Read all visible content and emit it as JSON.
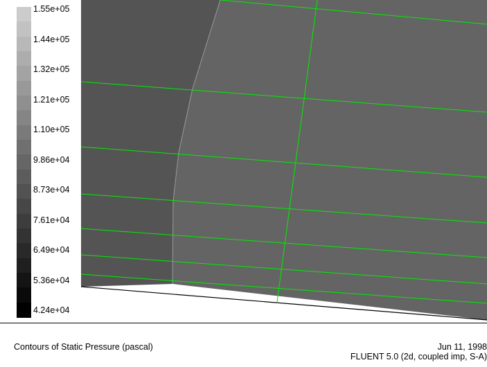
{
  "legend": {
    "labels": [
      "1.55e+05",
      "1.44e+05",
      "1.32e+05",
      "1.21e+05",
      "1.10e+05",
      "9.86e+04",
      "8.73e+04",
      "7.61e+04",
      "6.49e+04",
      "5.36e+04",
      "4.24e+04"
    ],
    "band_count": 21
  },
  "colors": {
    "mesh_line": "#00ee00",
    "region_dark": "#555555",
    "region_light": "#636363",
    "domain_edge": "#000000",
    "background": "#ffffff"
  },
  "footer": {
    "title": "Contours of Static Pressure (pascal)",
    "date": "Jun 11, 1998",
    "solver": "FLUENT 5.0 (2d, coupled imp, S-A)"
  }
}
